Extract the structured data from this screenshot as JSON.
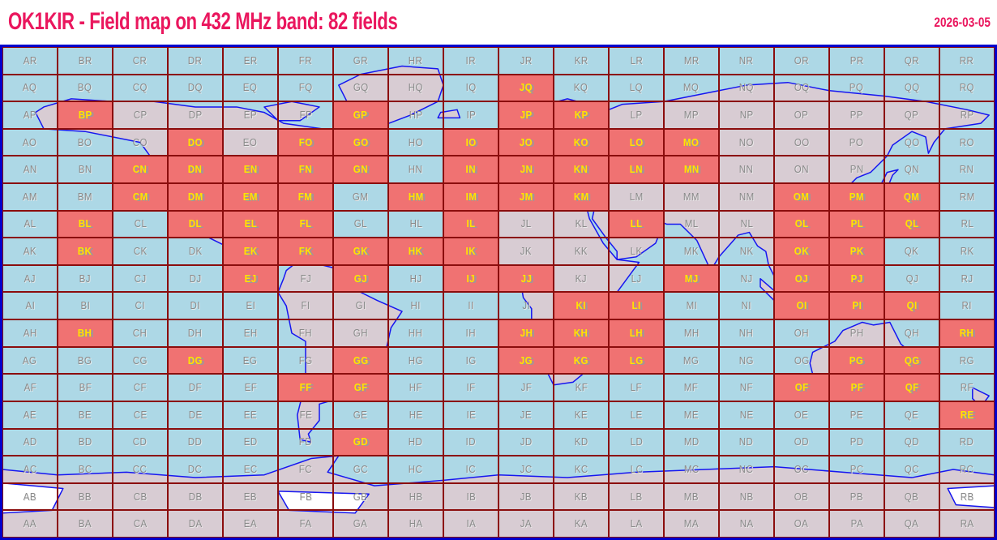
{
  "header": {
    "title": "OK1KIR - Field map on 432 MHz band:  82 fields",
    "date": "2026-03-05"
  },
  "grid": {
    "type": "maidenhead-field-grid",
    "columns": [
      "A",
      "B",
      "C",
      "D",
      "E",
      "F",
      "G",
      "H",
      "I",
      "J",
      "K",
      "L",
      "M",
      "N",
      "O",
      "P",
      "Q",
      "R"
    ],
    "rows_top_to_bottom": [
      "R",
      "Q",
      "P",
      "O",
      "N",
      "M",
      "L",
      "K",
      "J",
      "I",
      "H",
      "G",
      "F",
      "E",
      "D",
      "C",
      "B",
      "A"
    ],
    "worked_count": 82,
    "worked_fields": [
      "JQ",
      "BP",
      "GP",
      "JP",
      "KP",
      "DO",
      "FO",
      "GO",
      "IO",
      "JO",
      "KO",
      "LO",
      "MO",
      "CN",
      "DN",
      "EN",
      "FN",
      "GN",
      "IN",
      "JN",
      "KN",
      "LN",
      "MN",
      "CM",
      "DM",
      "EM",
      "FM",
      "HM",
      "IM",
      "JM",
      "KM",
      "OM",
      "PM",
      "QM",
      "BL",
      "DL",
      "EL",
      "FL",
      "IL",
      "LL",
      "OL",
      "PL",
      "QL",
      "BK",
      "EK",
      "FK",
      "GK",
      "HK",
      "IK",
      "OK",
      "PK",
      "EJ",
      "GJ",
      "IJ",
      "JJ",
      "MJ",
      "OJ",
      "PJ",
      "KI",
      "LI",
      "OI",
      "PI",
      "QI",
      "BH",
      "JH",
      "KH",
      "LH",
      "RH",
      "DG",
      "GG",
      "JG",
      "KG",
      "LG",
      "PG",
      "QG",
      "FF",
      "GF",
      "OF",
      "PF",
      "QF",
      "RE",
      "GD"
    ]
  },
  "chart_data": {
    "type": "heatmap",
    "title": "OK1KIR - Field map on 432 MHz band: 82 fields",
    "x_categories": [
      "A",
      "B",
      "C",
      "D",
      "E",
      "F",
      "G",
      "H",
      "I",
      "J",
      "K",
      "L",
      "M",
      "N",
      "O",
      "P",
      "Q",
      "R"
    ],
    "y_categories_top_to_bottom": [
      "R",
      "Q",
      "P",
      "O",
      "N",
      "M",
      "L",
      "K",
      "J",
      "I",
      "H",
      "G",
      "F",
      "E",
      "D",
      "C",
      "B",
      "A"
    ],
    "worked_fields": [
      "JQ",
      "BP",
      "GP",
      "JP",
      "KP",
      "DO",
      "FO",
      "GO",
      "IO",
      "JO",
      "KO",
      "LO",
      "MO",
      "CN",
      "DN",
      "EN",
      "FN",
      "GN",
      "IN",
      "JN",
      "KN",
      "LN",
      "MN",
      "CM",
      "DM",
      "EM",
      "FM",
      "HM",
      "IM",
      "JM",
      "KM",
      "OM",
      "PM",
      "QM",
      "BL",
      "DL",
      "EL",
      "FL",
      "IL",
      "LL",
      "OL",
      "PL",
      "QL",
      "BK",
      "EK",
      "FK",
      "GK",
      "HK",
      "IK",
      "OK",
      "PK",
      "EJ",
      "GJ",
      "IJ",
      "JJ",
      "MJ",
      "OJ",
      "PJ",
      "KI",
      "LI",
      "OI",
      "PI",
      "QI",
      "BH",
      "JH",
      "KH",
      "LH",
      "RH",
      "DG",
      "GG",
      "JG",
      "KG",
      "LG",
      "PG",
      "QG",
      "FF",
      "GF",
      "OF",
      "PF",
      "QF",
      "RE",
      "GD"
    ],
    "legend": {
      "worked": "red cell, yellow label",
      "not_worked": "blue/grey cell, grey label"
    }
  },
  "colors": {
    "title_pink": "#EA175E",
    "water": "#ADD8E6",
    "land": "#D8CCD3",
    "worked": "#F07272",
    "grid_line": "#8B0D0D",
    "frame": "#0000CC",
    "coast": "#1616F0",
    "label_grey": "#8A8A8A",
    "label_worked": "#FFE400"
  }
}
